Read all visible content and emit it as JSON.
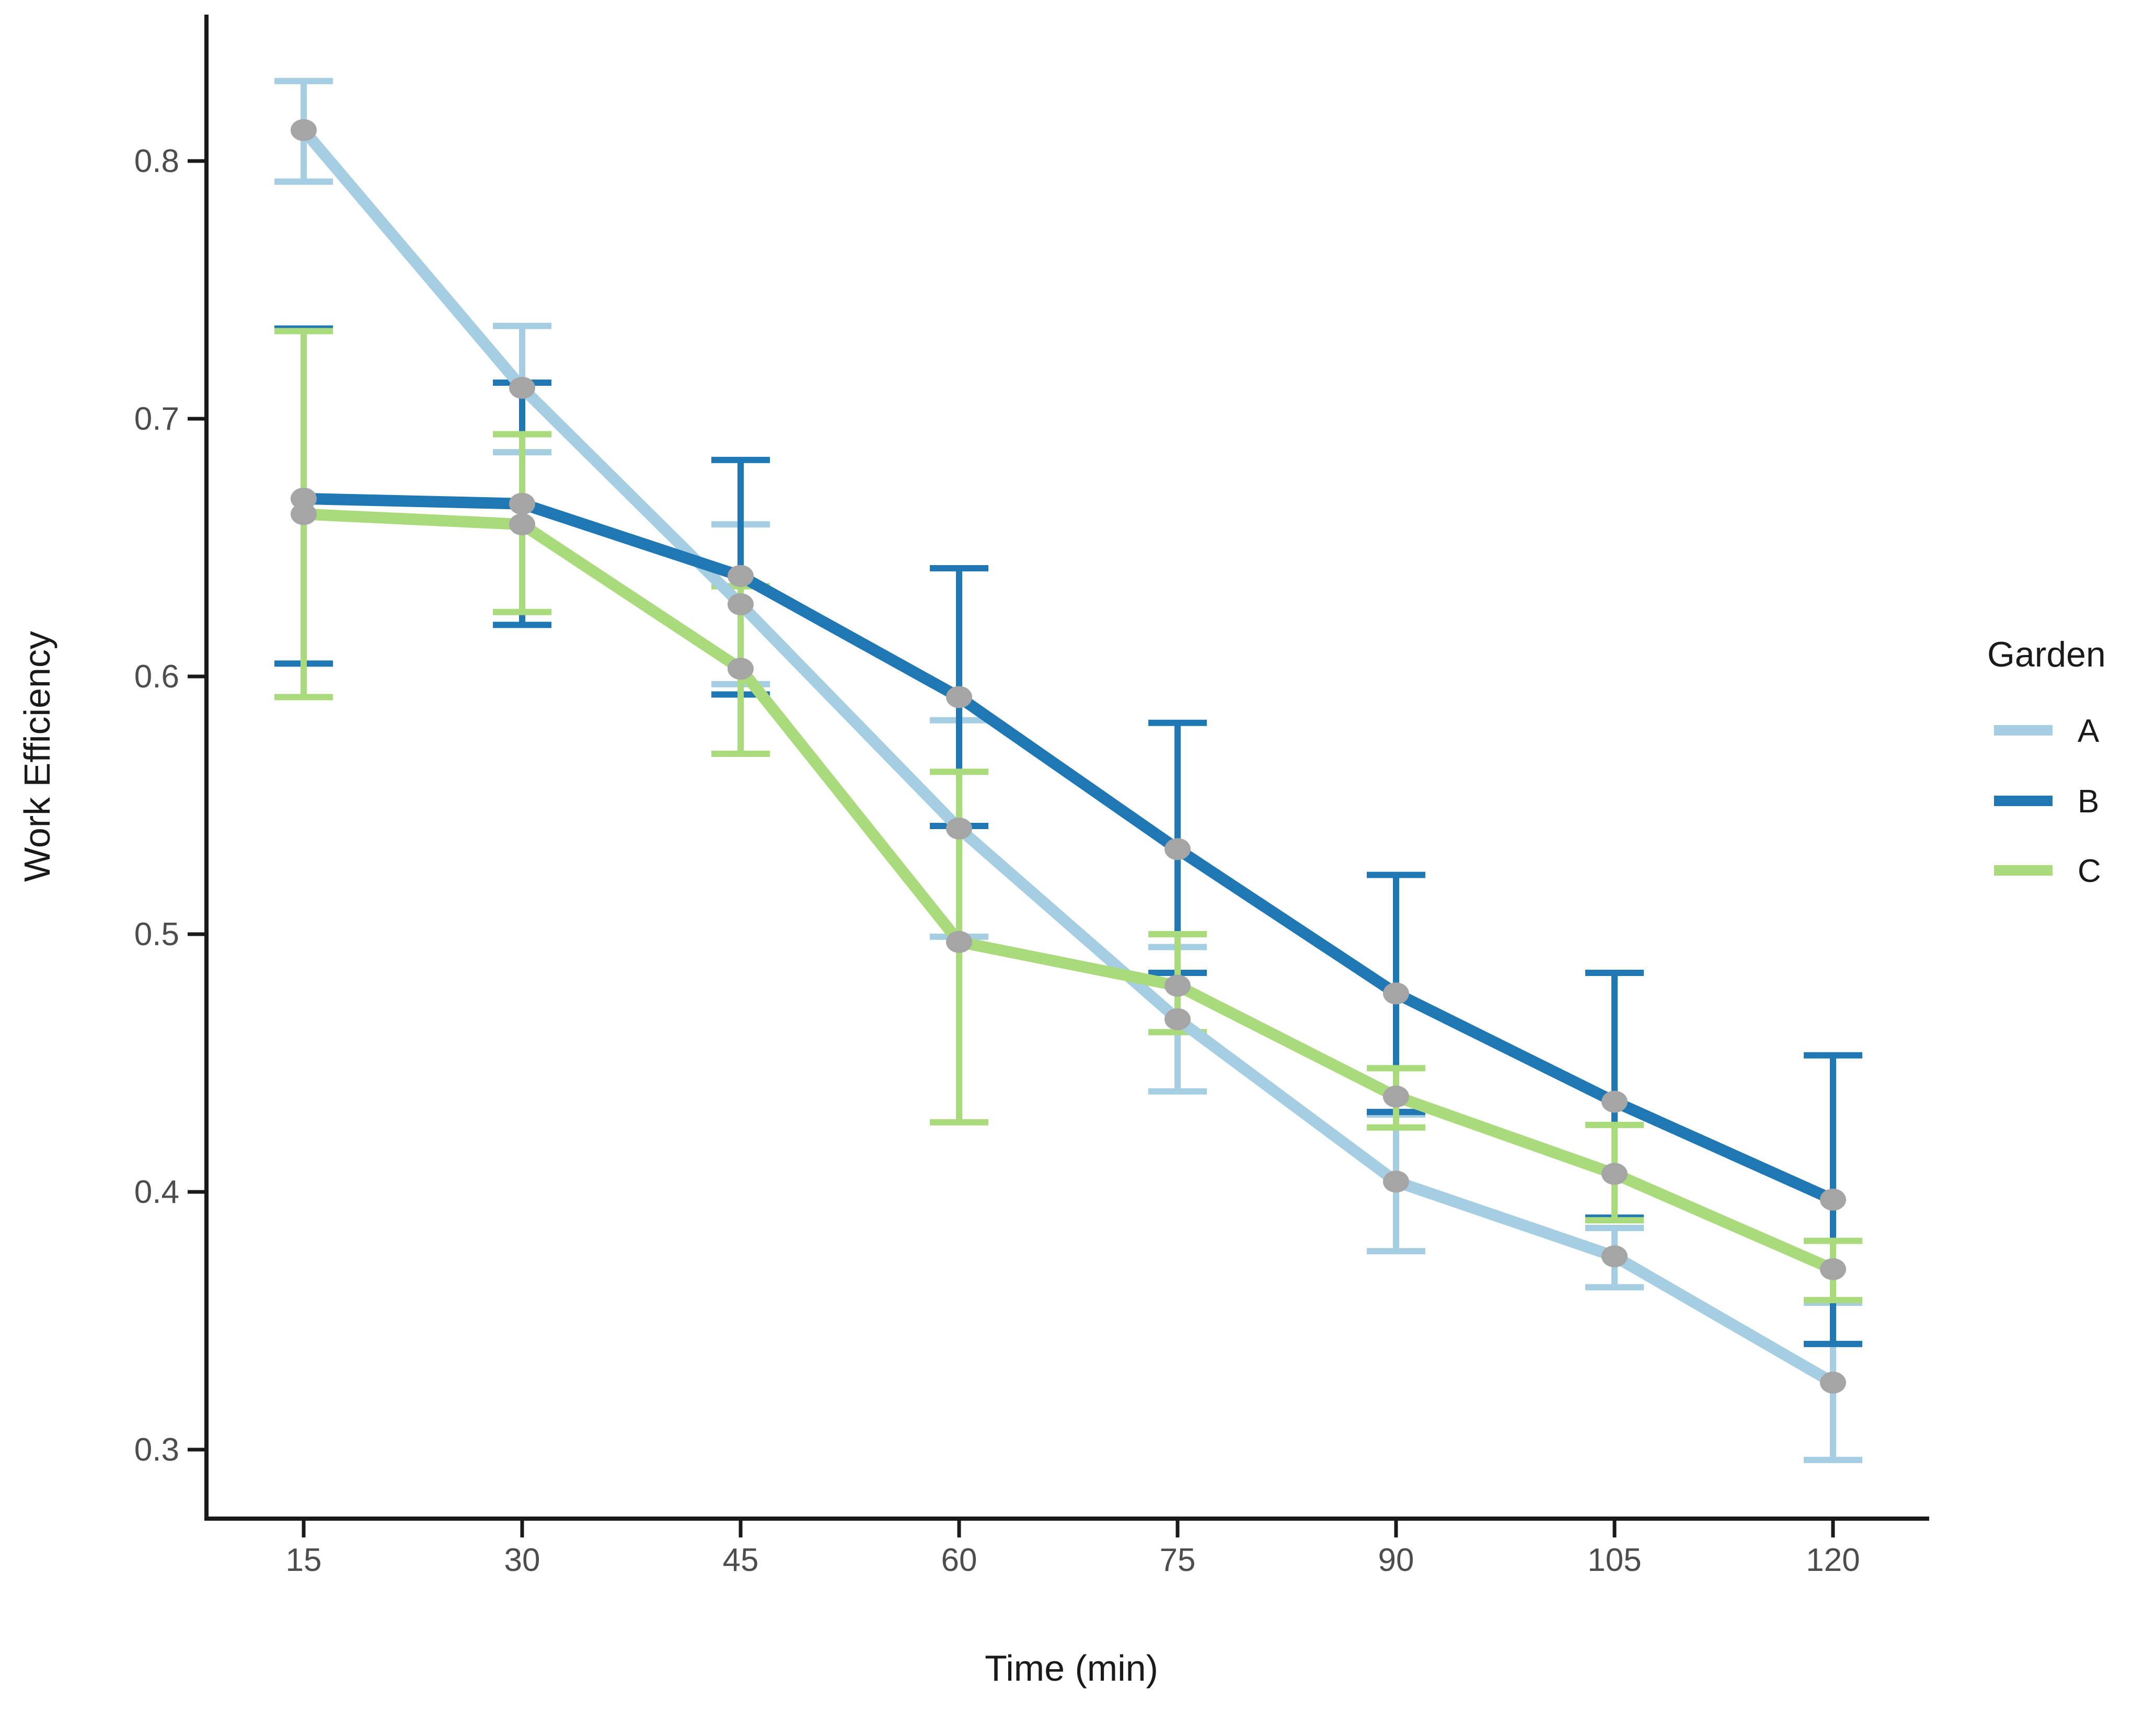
{
  "figure": {
    "background": "#ffffff"
  },
  "chart_data": {
    "type": "line",
    "title": "",
    "xlabel": "Time (min)",
    "ylabel": "Work Efficiency",
    "x": [
      15,
      30,
      45,
      60,
      75,
      90,
      105,
      120
    ],
    "x_tick_labels": [
      "15",
      "30",
      "45",
      "60",
      "75",
      "90",
      "105",
      "120"
    ],
    "y_ticks": [
      0.3,
      0.4,
      0.5,
      0.6,
      0.7,
      0.8
    ],
    "y_tick_labels": [
      "0.3",
      "0.4",
      "0.5",
      "0.6",
      "0.7",
      "0.8"
    ],
    "xlim": [
      8,
      127
    ],
    "ylim": [
      0.273,
      0.857
    ],
    "grid": false,
    "legend": {
      "title": "Garden",
      "position": "right",
      "entries": [
        "A",
        "B",
        "C"
      ]
    },
    "point_color": "#a5a5a5",
    "axis_color": "#1a1a1a",
    "tick_label_color": "#4d4d4d",
    "title_color": "#1a1a1a",
    "series": [
      {
        "name": "A",
        "color": "#a6cee3",
        "y": [
          0.812,
          0.712,
          0.628,
          0.541,
          0.467,
          0.404,
          0.375,
          0.326
        ],
        "err_low": [
          0.792,
          0.687,
          0.597,
          0.499,
          0.439,
          0.377,
          0.363,
          0.296
        ],
        "err_high": [
          0.831,
          0.736,
          0.659,
          0.583,
          0.495,
          0.43,
          0.386,
          0.357
        ]
      },
      {
        "name": "B",
        "color": "#1f78b4",
        "y": [
          0.669,
          0.667,
          0.639,
          0.592,
          0.533,
          0.477,
          0.435,
          0.397
        ],
        "err_low": [
          0.605,
          0.62,
          0.593,
          0.542,
          0.485,
          0.431,
          0.39,
          0.341
        ],
        "err_high": [
          0.735,
          0.714,
          0.684,
          0.642,
          0.582,
          0.523,
          0.485,
          0.453
        ]
      },
      {
        "name": "C",
        "color": "#a9da7b",
        "y": [
          0.663,
          0.659,
          0.603,
          0.497,
          0.48,
          0.437,
          0.407,
          0.37
        ],
        "err_low": [
          0.592,
          0.625,
          0.57,
          0.427,
          0.462,
          0.425,
          0.389,
          0.358
        ],
        "err_high": [
          0.734,
          0.694,
          0.635,
          0.563,
          0.5,
          0.448,
          0.426,
          0.381
        ]
      }
    ]
  }
}
